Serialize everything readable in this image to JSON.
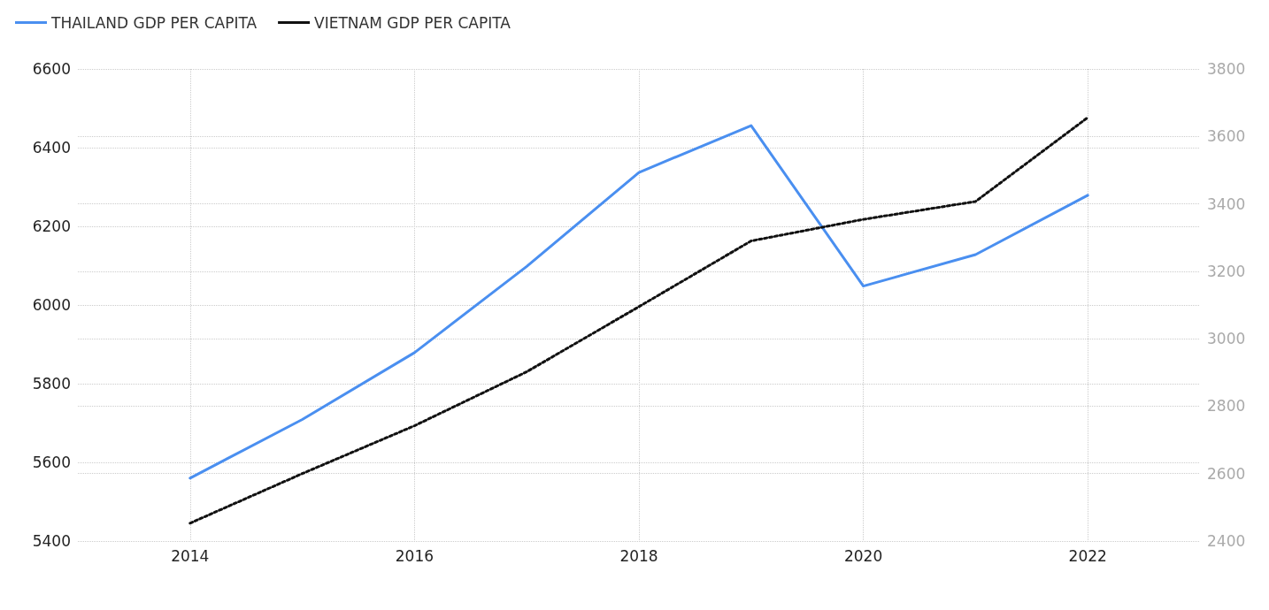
{
  "chart_data": {
    "type": "line",
    "x": [
      2014,
      2015,
      2016,
      2017,
      2018,
      2019,
      2020,
      2021,
      2022
    ],
    "series": [
      {
        "name": "THAILAND GDP PER CAPITA",
        "color": "#4a8ff0",
        "line_style": "solid",
        "values": [
          5560,
          5709,
          5879,
          6098,
          6337,
          6456,
          6048,
          6128,
          6279
        ]
      },
      {
        "name": "VIETNAM GDP PER CAPITA",
        "color": "#111111",
        "line_style": "dotted",
        "axis": "y2",
        "values": [
          2453,
          2600,
          2742,
          2902,
          3095,
          3290,
          3354,
          3407,
          3656
        ]
      }
    ],
    "xlim": [
      2013,
      2023
    ],
    "xticks": [
      2014,
      2016,
      2018,
      2020,
      2022
    ],
    "ylim": [
      5400,
      6600
    ],
    "yticks": [
      5400,
      5600,
      5800,
      6000,
      6200,
      6400,
      6600
    ],
    "y2lim": [
      2400,
      3800
    ],
    "y2ticks": [
      2400,
      2600,
      2800,
      3000,
      3200,
      3400,
      3600,
      3800
    ],
    "grid": true,
    "legend": "top left",
    "marker": "none"
  }
}
